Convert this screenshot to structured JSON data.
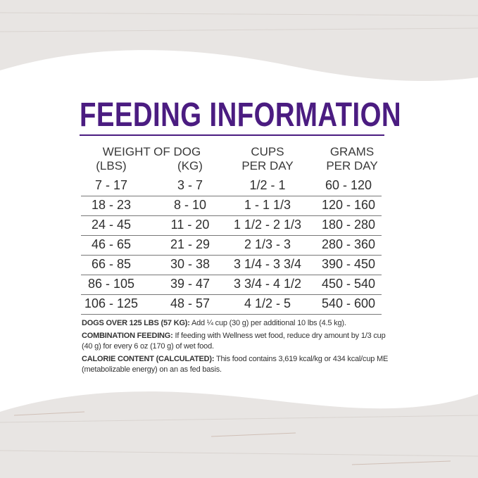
{
  "title": "FEEDING INFORMATION",
  "headers": {
    "weight": "WEIGHT OF DOG",
    "lbs": "(LBS)",
    "kg": "(KG)",
    "cups1": "CUPS",
    "cups2": "PER DAY",
    "grams1": "GRAMS",
    "grams2": "PER DAY"
  },
  "rows": [
    [
      "7 - 17",
      "3 - 7",
      "1/2 - 1",
      "60 - 120"
    ],
    [
      "18 - 23",
      "8 - 10",
      "1 - 1 1/3",
      "120 - 160"
    ],
    [
      "24 - 45",
      "11 - 20",
      "1 1/2 - 2 1/3",
      "180 - 280"
    ],
    [
      "46 - 65",
      "21 - 29",
      "2 1/3 - 3",
      "280 - 360"
    ],
    [
      "66 - 85",
      "30 - 38",
      "3 1/4 - 3 3/4",
      "390 - 450"
    ],
    [
      "86 - 105",
      "39 - 47",
      "3 3/4 - 4 1/2",
      "450 - 540"
    ],
    [
      "106 - 125",
      "48 - 57",
      "4 1/2 - 5",
      "540 - 600"
    ]
  ],
  "notes": [
    {
      "label": "DOGS OVER 125 LBS (57 KG):",
      "text": " Add ¼ cup (30 g) per additional 10 lbs (4.5 kg)."
    },
    {
      "label": "COMBINATION FEEDING:",
      "text": " If feeding with Wellness wet food, reduce dry amount by 1/3 cup (40 g) for every 6 oz (170 g) of wet food."
    },
    {
      "label": "CALORIE CONTENT (CALCULATED):",
      "text": " This food contains 3,619 kcal/kg or 434 kcal/cup ME (metabolizable energy) on an as fed basis."
    }
  ],
  "colors": {
    "accent": "#4b1c81",
    "background_wood": "#e9e6e4"
  }
}
